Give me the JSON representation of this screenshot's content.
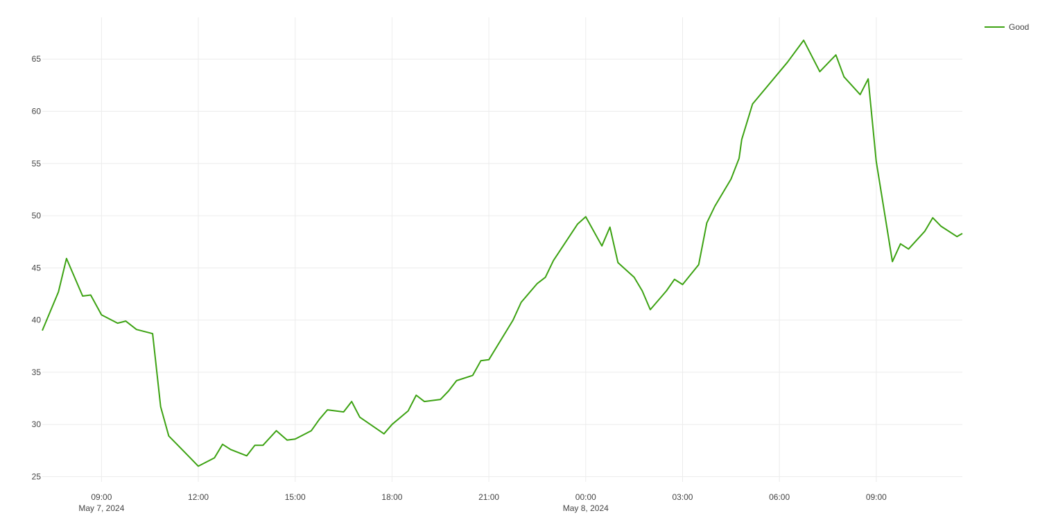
{
  "chart_data": {
    "type": "line",
    "title": "",
    "xlabel": "",
    "ylabel": "",
    "grid": true,
    "legend_position": "top-right",
    "xlim": [
      "2024-05-07T07:10",
      "2024-05-08T11:40"
    ],
    "ylim": [
      24.5,
      69
    ],
    "y_ticks": [
      25,
      30,
      35,
      40,
      45,
      50,
      55,
      60,
      65
    ],
    "x_ticks": [
      {
        "time": "2024-05-07T09:00",
        "label": "09:00",
        "sublabel": "May 7, 2024"
      },
      {
        "time": "2024-05-07T12:00",
        "label": "12:00",
        "sublabel": ""
      },
      {
        "time": "2024-05-07T15:00",
        "label": "15:00",
        "sublabel": ""
      },
      {
        "time": "2024-05-07T18:00",
        "label": "18:00",
        "sublabel": ""
      },
      {
        "time": "2024-05-07T21:00",
        "label": "21:00",
        "sublabel": ""
      },
      {
        "time": "2024-05-08T00:00",
        "label": "00:00",
        "sublabel": "May 8, 2024"
      },
      {
        "time": "2024-05-08T03:00",
        "label": "03:00",
        "sublabel": ""
      },
      {
        "time": "2024-05-08T06:00",
        "label": "06:00",
        "sublabel": ""
      },
      {
        "time": "2024-05-08T09:00",
        "label": "09:00",
        "sublabel": ""
      }
    ],
    "series": [
      {
        "name": "Good",
        "color": "#3ca212",
        "points": [
          [
            "2024-05-07T07:10",
            39.0
          ],
          [
            "2024-05-07T07:40",
            42.7
          ],
          [
            "2024-05-07T07:55",
            45.9
          ],
          [
            "2024-05-07T08:25",
            42.3
          ],
          [
            "2024-05-07T08:40",
            42.4
          ],
          [
            "2024-05-07T09:00",
            40.5
          ],
          [
            "2024-05-07T09:30",
            39.7
          ],
          [
            "2024-05-07T09:45",
            39.9
          ],
          [
            "2024-05-07T10:05",
            39.1
          ],
          [
            "2024-05-07T10:35",
            38.7
          ],
          [
            "2024-05-07T10:50",
            31.7
          ],
          [
            "2024-05-07T11:05",
            28.9
          ],
          [
            "2024-05-07T11:45",
            26.8
          ],
          [
            "2024-05-07T12:00",
            26.0
          ],
          [
            "2024-05-07T12:30",
            26.8
          ],
          [
            "2024-05-07T12:45",
            28.1
          ],
          [
            "2024-05-07T13:00",
            27.6
          ],
          [
            "2024-05-07T13:30",
            27.0
          ],
          [
            "2024-05-07T13:45",
            28.0
          ],
          [
            "2024-05-07T14:00",
            28.0
          ],
          [
            "2024-05-07T14:25",
            29.4
          ],
          [
            "2024-05-07T14:45",
            28.5
          ],
          [
            "2024-05-07T15:00",
            28.6
          ],
          [
            "2024-05-07T15:30",
            29.4
          ],
          [
            "2024-05-07T15:45",
            30.5
          ],
          [
            "2024-05-07T16:00",
            31.4
          ],
          [
            "2024-05-07T16:30",
            31.2
          ],
          [
            "2024-05-07T16:45",
            32.2
          ],
          [
            "2024-05-07T17:00",
            30.7
          ],
          [
            "2024-05-07T17:45",
            29.1
          ],
          [
            "2024-05-07T18:00",
            30.0
          ],
          [
            "2024-05-07T18:30",
            31.3
          ],
          [
            "2024-05-07T18:45",
            32.8
          ],
          [
            "2024-05-07T19:00",
            32.2
          ],
          [
            "2024-05-07T19:30",
            32.4
          ],
          [
            "2024-05-07T19:45",
            33.2
          ],
          [
            "2024-05-07T20:00",
            34.2
          ],
          [
            "2024-05-07T20:30",
            34.7
          ],
          [
            "2024-05-07T20:45",
            36.1
          ],
          [
            "2024-05-07T21:00",
            36.2
          ],
          [
            "2024-05-07T21:45",
            40.0
          ],
          [
            "2024-05-07T22:00",
            41.7
          ],
          [
            "2024-05-07T22:30",
            43.5
          ],
          [
            "2024-05-07T22:45",
            44.1
          ],
          [
            "2024-05-07T23:00",
            45.7
          ],
          [
            "2024-05-07T23:45",
            49.2
          ],
          [
            "2024-05-08T00:00",
            49.9
          ],
          [
            "2024-05-08T00:30",
            47.1
          ],
          [
            "2024-05-08T00:45",
            48.9
          ],
          [
            "2024-05-08T01:00",
            45.5
          ],
          [
            "2024-05-08T01:30",
            44.1
          ],
          [
            "2024-05-08T01:45",
            42.8
          ],
          [
            "2024-05-08T02:00",
            41.0
          ],
          [
            "2024-05-08T02:30",
            42.8
          ],
          [
            "2024-05-08T02:45",
            43.9
          ],
          [
            "2024-05-08T03:00",
            43.4
          ],
          [
            "2024-05-08T03:30",
            45.3
          ],
          [
            "2024-05-08T03:45",
            49.3
          ],
          [
            "2024-05-08T04:00",
            50.9
          ],
          [
            "2024-05-08T04:30",
            53.5
          ],
          [
            "2024-05-08T04:45",
            55.5
          ],
          [
            "2024-05-08T04:50",
            57.3
          ],
          [
            "2024-05-08T05:10",
            60.7
          ],
          [
            "2024-05-08T06:15",
            64.7
          ],
          [
            "2024-05-08T06:45",
            66.8
          ],
          [
            "2024-05-08T07:15",
            63.8
          ],
          [
            "2024-05-08T07:45",
            65.4
          ],
          [
            "2024-05-08T08:00",
            63.3
          ],
          [
            "2024-05-08T08:30",
            61.6
          ],
          [
            "2024-05-08T08:45",
            63.1
          ],
          [
            "2024-05-08T09:00",
            55.2
          ],
          [
            "2024-05-08T09:30",
            45.6
          ],
          [
            "2024-05-08T09:45",
            47.3
          ],
          [
            "2024-05-08T10:00",
            46.8
          ],
          [
            "2024-05-08T10:30",
            48.5
          ],
          [
            "2024-05-08T10:45",
            49.8
          ],
          [
            "2024-05-08T11:00",
            49.0
          ],
          [
            "2024-05-08T11:30",
            48.0
          ],
          [
            "2024-05-08T11:40",
            48.3
          ]
        ]
      }
    ]
  }
}
